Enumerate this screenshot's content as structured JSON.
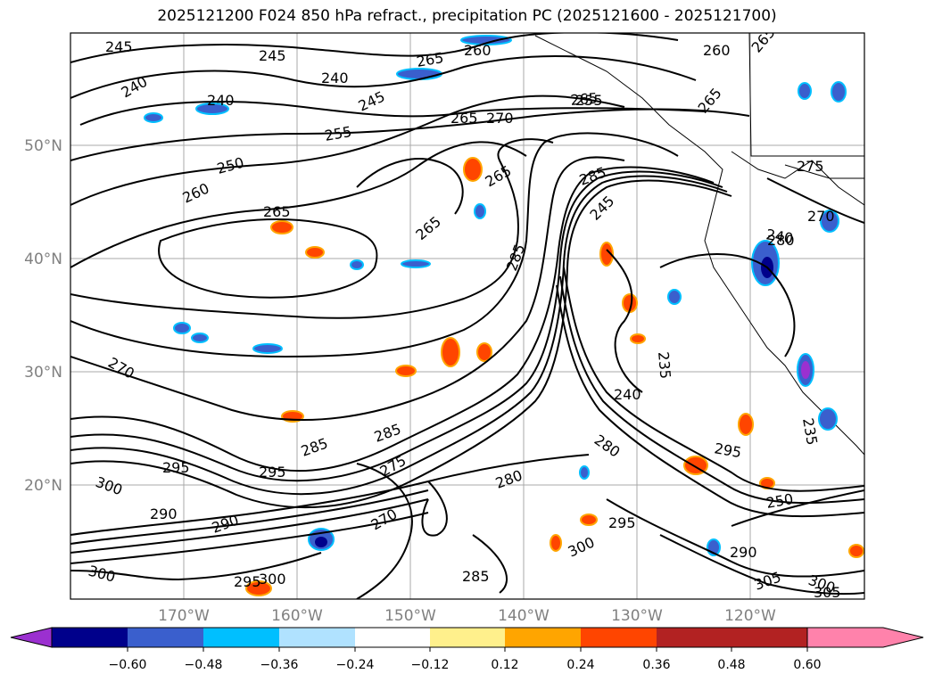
{
  "title": "2025121200 F024 850 hPa refract., precipitation PC (2025121600 - 2025121700)",
  "lat_labels": [
    "50°N",
    "40°N",
    "30°N",
    "20°N"
  ],
  "lon_labels": [
    "170°W",
    "160°W",
    "150°W",
    "140°W",
    "130°W",
    "120°W"
  ],
  "contour_labels": [
    "245",
    "245",
    "240",
    "240",
    "240",
    "245",
    "265",
    "260",
    "260",
    "265",
    "265",
    "255",
    "265",
    "270",
    "255",
    "250",
    "260",
    "265",
    "265",
    "285",
    "245",
    "275",
    "265",
    "285",
    "270",
    "280",
    "235",
    "240",
    "280",
    "235",
    "270",
    "295",
    "300",
    "290",
    "295",
    "285",
    "280",
    "285",
    "275",
    "270",
    "300",
    "295",
    "300",
    "285",
    "290",
    "290",
    "295",
    "300",
    "305",
    "300",
    "305",
    "250",
    "265",
    "240",
    "295"
  ],
  "colorbar": {
    "ticks": [
      "−0.60",
      "−0.48",
      "−0.36",
      "−0.24",
      "−0.12",
      "0.12",
      "0.24",
      "0.36",
      "0.48",
      "0.60"
    ],
    "colors": [
      "#9b30d0",
      "#00008b",
      "#3a5fcd",
      "#00bfff",
      "#b0e2ff",
      "#ffffff",
      "#fff08c",
      "#ffa500",
      "#ff4500",
      "#b22222",
      "#ff82ab"
    ]
  }
}
